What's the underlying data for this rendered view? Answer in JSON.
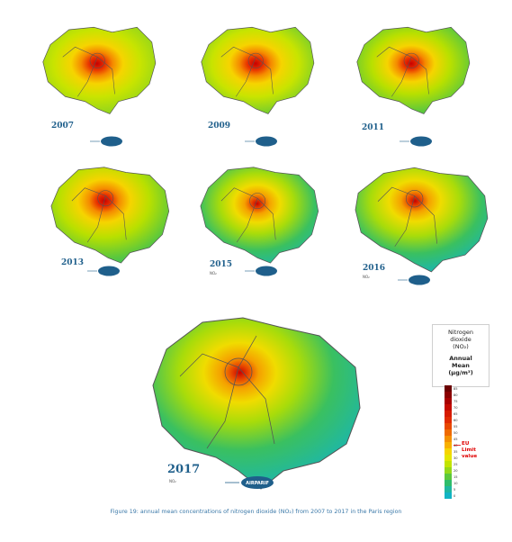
{
  "maps": [
    {
      "year": "2007",
      "sub": ""
    },
    {
      "year": "2009",
      "sub": ""
    },
    {
      "year": "2011",
      "sub": ""
    },
    {
      "year": "2013",
      "sub": ""
    },
    {
      "year": "2015",
      "sub": "NO₂"
    },
    {
      "year": "2016",
      "sub": "NO₂"
    },
    {
      "year": "2017",
      "sub": "NO₂"
    }
  ],
  "logo_text": "AIRPARIF",
  "legend": {
    "line1": "Nitrogen",
    "line2": "dioxide",
    "line3": "(NO₂)",
    "line4": "Annual",
    "line5": "Mean",
    "line6": "(µg/m³)",
    "ticks": [
      "85",
      "80",
      "75",
      "70",
      "65",
      "60",
      "55",
      "50",
      "45",
      "40",
      "35",
      "30",
      "25",
      "20",
      "15",
      "10",
      "5",
      "0"
    ],
    "eu_line1": "EU",
    "eu_line2": "Limit",
    "eu_line3": "value",
    "eu_limit_value": 40,
    "colors": [
      "#6b0000",
      "#8a0000",
      "#a80000",
      "#c40a00",
      "#d61a00",
      "#e02a00",
      "#e84800",
      "#ef6a00",
      "#f49000",
      "#f8b000",
      "#f6d400",
      "#e4e600",
      "#c2e400",
      "#94d81a",
      "#5cc83c",
      "#2fbd6a",
      "#1fb7a0",
      "#12b4c4"
    ]
  },
  "caption": "Figure 19: annual mean concentrations of nitrogen dioxide (NO₂) from 2007 to 2017 in the Paris region"
}
